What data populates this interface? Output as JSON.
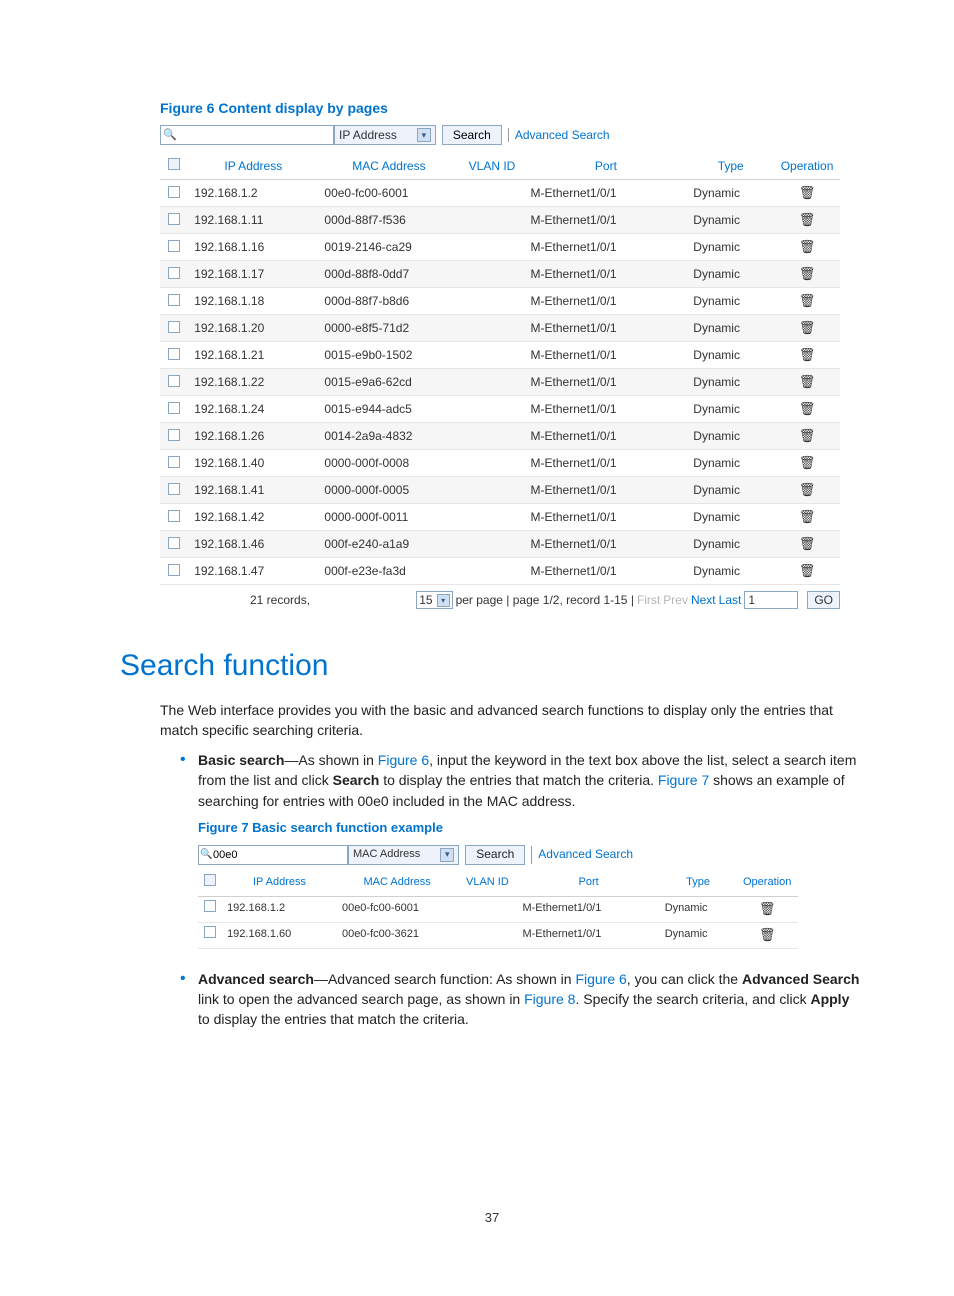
{
  "figure6": {
    "caption": "Figure 6 Content display by pages",
    "search": {
      "input_value": "",
      "select_label": "IP Address",
      "search_btn": "Search",
      "advanced_link": "Advanced Search"
    },
    "columns": [
      "IP Address",
      "MAC Address",
      "VLAN ID",
      "Port",
      "Type",
      "Operation"
    ],
    "rows": [
      {
        "ip": "192.168.1.2",
        "mac": "00e0-fc00-6001",
        "vlan": "",
        "port": "M-Ethernet1/0/1",
        "type": "Dynamic"
      },
      {
        "ip": "192.168.1.11",
        "mac": "000d-88f7-f536",
        "vlan": "",
        "port": "M-Ethernet1/0/1",
        "type": "Dynamic"
      },
      {
        "ip": "192.168.1.16",
        "mac": "0019-2146-ca29",
        "vlan": "",
        "port": "M-Ethernet1/0/1",
        "type": "Dynamic"
      },
      {
        "ip": "192.168.1.17",
        "mac": "000d-88f8-0dd7",
        "vlan": "",
        "port": "M-Ethernet1/0/1",
        "type": "Dynamic"
      },
      {
        "ip": "192.168.1.18",
        "mac": "000d-88f7-b8d6",
        "vlan": "",
        "port": "M-Ethernet1/0/1",
        "type": "Dynamic"
      },
      {
        "ip": "192.168.1.20",
        "mac": "0000-e8f5-71d2",
        "vlan": "",
        "port": "M-Ethernet1/0/1",
        "type": "Dynamic"
      },
      {
        "ip": "192.168.1.21",
        "mac": "0015-e9b0-1502",
        "vlan": "",
        "port": "M-Ethernet1/0/1",
        "type": "Dynamic"
      },
      {
        "ip": "192.168.1.22",
        "mac": "0015-e9a6-62cd",
        "vlan": "",
        "port": "M-Ethernet1/0/1",
        "type": "Dynamic"
      },
      {
        "ip": "192.168.1.24",
        "mac": "0015-e944-adc5",
        "vlan": "",
        "port": "M-Ethernet1/0/1",
        "type": "Dynamic"
      },
      {
        "ip": "192.168.1.26",
        "mac": "0014-2a9a-4832",
        "vlan": "",
        "port": "M-Ethernet1/0/1",
        "type": "Dynamic"
      },
      {
        "ip": "192.168.1.40",
        "mac": "0000-000f-0008",
        "vlan": "",
        "port": "M-Ethernet1/0/1",
        "type": "Dynamic"
      },
      {
        "ip": "192.168.1.41",
        "mac": "0000-000f-0005",
        "vlan": "",
        "port": "M-Ethernet1/0/1",
        "type": "Dynamic"
      },
      {
        "ip": "192.168.1.42",
        "mac": "0000-000f-0011",
        "vlan": "",
        "port": "M-Ethernet1/0/1",
        "type": "Dynamic"
      },
      {
        "ip": "192.168.1.46",
        "mac": "000f-e240-a1a9",
        "vlan": "",
        "port": "M-Ethernet1/0/1",
        "type": "Dynamic"
      },
      {
        "ip": "192.168.1.47",
        "mac": "000f-e23e-fa3d",
        "vlan": "",
        "port": "M-Ethernet1/0/1",
        "type": "Dynamic"
      }
    ],
    "pagination": {
      "records_text": "21 records,",
      "per_page_value": "15",
      "status_text": "per page | page 1/2, record 1-15 |",
      "first": "First",
      "prev": "Prev",
      "next": "Next",
      "last": "Last",
      "page_input": "1",
      "go": "GO"
    }
  },
  "section": {
    "title": "Search function",
    "intro": "The Web interface provides you with the basic and advanced search functions to display only the entries that match specific searching criteria.",
    "bullet1": {
      "label": "Basic search",
      "text1": "—As shown in ",
      "link1": "Figure 6",
      "text2": ", input the keyword in the text box above the list, select a search item from the list and click ",
      "bold1": "Search",
      "text3": " to display the entries that match the criteria. ",
      "link2": "Figure 7",
      "text4": " shows an example of searching for entries with 00e0 included in the MAC address."
    },
    "bullet2": {
      "label": "Advanced search",
      "text1": "—Advanced search function: As shown in ",
      "link1": "Figure 6",
      "text2": ", you can click the ",
      "bold1": "Advanced Search",
      "text3": " link to open the advanced search page, as shown in ",
      "link2": "Figure 8",
      "text4": ". Specify the search criteria, and click ",
      "bold2": "Apply",
      "text5": " to display the entries that match the criteria."
    }
  },
  "figure7": {
    "caption": "Figure 7 Basic search function example",
    "search": {
      "input_value": "00e0",
      "select_label": "MAC Address",
      "search_btn": "Search",
      "advanced_link": "Advanced Search"
    },
    "columns": [
      "IP Address",
      "MAC Address",
      "VLAN ID",
      "Port",
      "Type",
      "Operation"
    ],
    "rows": [
      {
        "ip": "192.168.1.2",
        "mac": "00e0-fc00-6001",
        "vlan": "",
        "port": "M-Ethernet1/0/1",
        "type": "Dynamic"
      },
      {
        "ip": "192.168.1.60",
        "mac": "00e0-fc00-3621",
        "vlan": "",
        "port": "M-Ethernet1/0/1",
        "type": "Dynamic"
      }
    ]
  },
  "page_number": "37",
  "colors": {
    "link": "#0073cf",
    "border": "#8aa6c1",
    "altrow": "#f6f6f6",
    "panel": "#eef3fb"
  }
}
